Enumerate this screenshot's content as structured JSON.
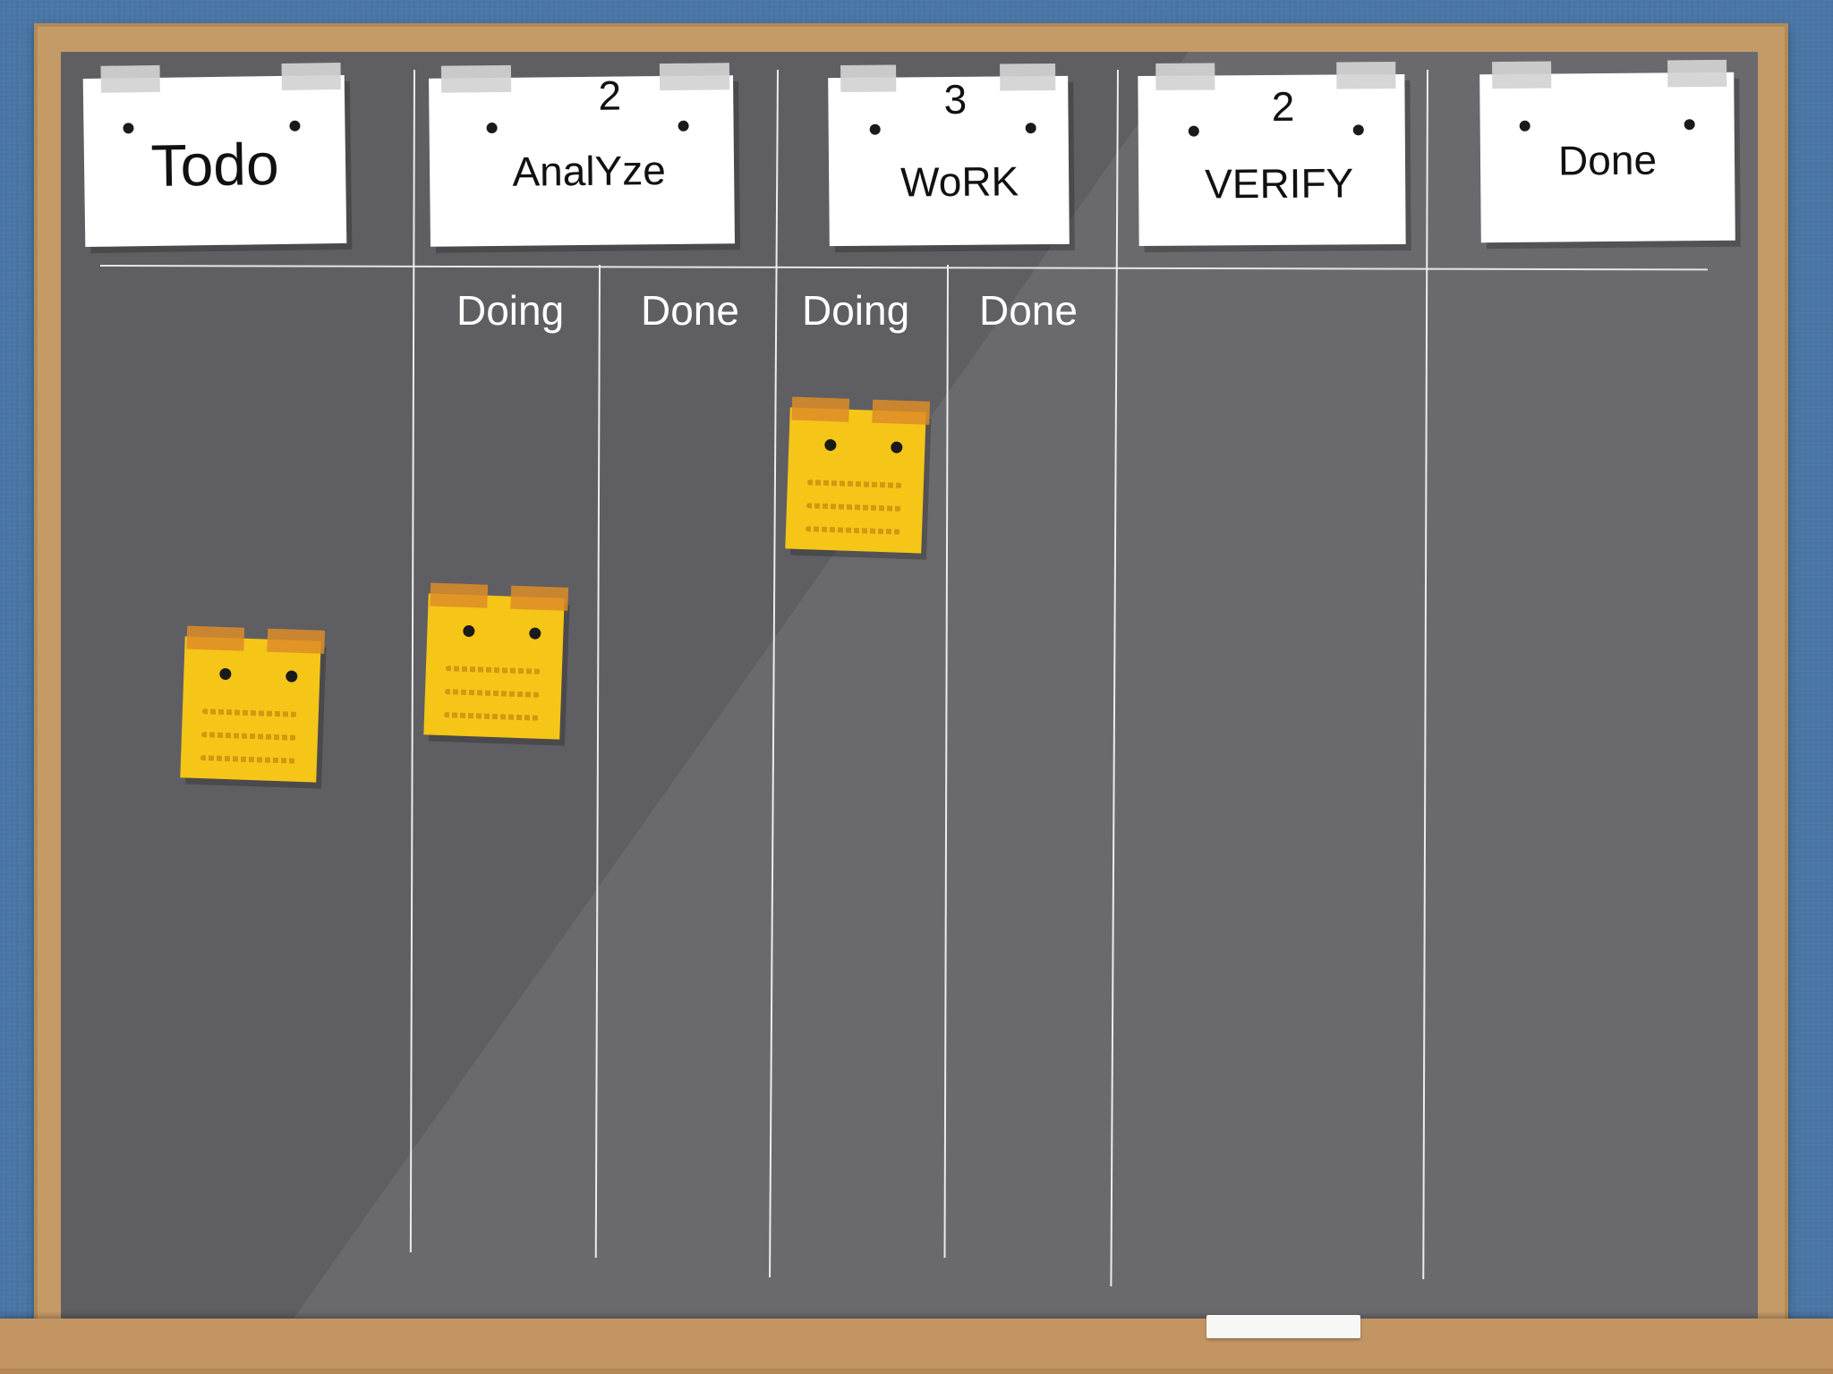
{
  "board": {
    "columns": [
      {
        "title": "Todo",
        "wip_limit": ""
      },
      {
        "title": "AnalYze",
        "wip_limit": "2"
      },
      {
        "title": "WoRK",
        "wip_limit": "3"
      },
      {
        "title": "VERIFY",
        "wip_limit": "2"
      },
      {
        "title": "Done",
        "wip_limit": ""
      }
    ],
    "sub_columns": [
      "Doing",
      "Done",
      "Doing",
      "Done"
    ],
    "cards": [
      {
        "column": "Todo",
        "sub_column": ""
      },
      {
        "column": "AnalYze",
        "sub_column": "Doing"
      },
      {
        "column": "WoRK",
        "sub_column": "Doing"
      }
    ],
    "colors": {
      "wall": "#4a76a6",
      "frame": "#c49a66",
      "chalkboard": "#5f5e62",
      "header_note": "#ffffff",
      "sticky_note": "#f5c518",
      "sticky_tape": "#dc8c28"
    }
  }
}
